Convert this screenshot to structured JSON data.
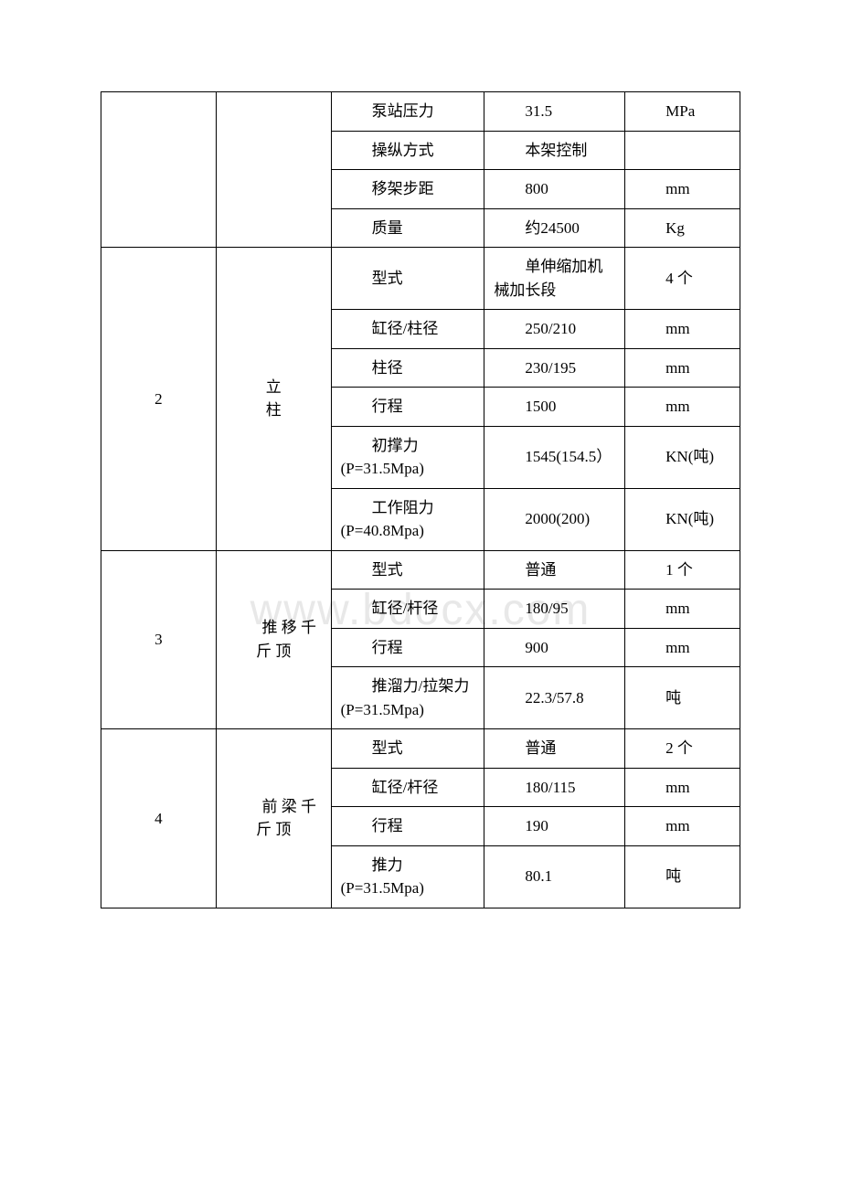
{
  "watermark": "www.bdocx.com",
  "table": {
    "border_color": "#000000",
    "border_width": 1.5,
    "font_size": 17,
    "line_height": 1.5,
    "text_color": "#000000",
    "background_color": "#ffffff",
    "columns": {
      "idx_width_pct": 18,
      "name_width_pct": 18,
      "param_width_pct": 24,
      "value_width_pct": 22,
      "unit_width_pct": 18
    }
  },
  "sections": [
    {
      "index": "",
      "name": "",
      "rows": [
        {
          "param": "泵站压力",
          "param_prefix": "",
          "value": "31.5",
          "unit": "MPa"
        },
        {
          "param": "操纵方式",
          "param_prefix": "",
          "value": "本架控制",
          "value_prefix": "",
          "unit": ""
        },
        {
          "param": "移架步距",
          "param_prefix": "",
          "value": "800",
          "unit": "mm"
        },
        {
          "param": "质量",
          "param_prefix": "",
          "value": "约24500",
          "value_prefix": "",
          "unit": "Kg"
        }
      ]
    },
    {
      "index": "2",
      "name_l1": "立",
      "name_l2": "柱",
      "rows": [
        {
          "param": "型式",
          "value": "单伸缩加机械加长段",
          "value_prefix": "",
          "unit": "4 个"
        },
        {
          "param": "缸径/柱径",
          "value": "250/210",
          "unit": "mm"
        },
        {
          "param": "柱径",
          "value": "230/195",
          "unit": "mm"
        },
        {
          "param": "行程",
          "value": "1500",
          "unit": "mm"
        },
        {
          "param": "初撑力(P=31.5Mpa)",
          "value": "1545(154.5）",
          "unit": "KN(吨)"
        },
        {
          "param": "工作阻力(P=40.8Mpa)",
          "value": "2000(200)",
          "unit": "KN(吨)"
        }
      ]
    },
    {
      "index": "3",
      "name": "推 移 千斤 顶",
      "rows": [
        {
          "param": "型式",
          "value": "普通",
          "unit": "1 个"
        },
        {
          "param": "缸径/杆径",
          "value": "180/95",
          "unit": "mm"
        },
        {
          "param": "行程",
          "value": "900",
          "unit": "mm"
        },
        {
          "param": "推溜力/拉架力(P=31.5Mpa)",
          "value": "22.3/57.8",
          "unit": "吨"
        }
      ]
    },
    {
      "index": "4",
      "name": "前 梁 千斤 顶",
      "rows": [
        {
          "param": "型式",
          "value": "普通",
          "unit": "2 个"
        },
        {
          "param": "缸径/杆径",
          "value": "180/115",
          "unit": "mm"
        },
        {
          "param": "行程",
          "value": "190",
          "unit": "mm"
        },
        {
          "param": "推力(P=31.5Mpa)",
          "value": "80.1",
          "unit": "吨"
        }
      ]
    }
  ]
}
